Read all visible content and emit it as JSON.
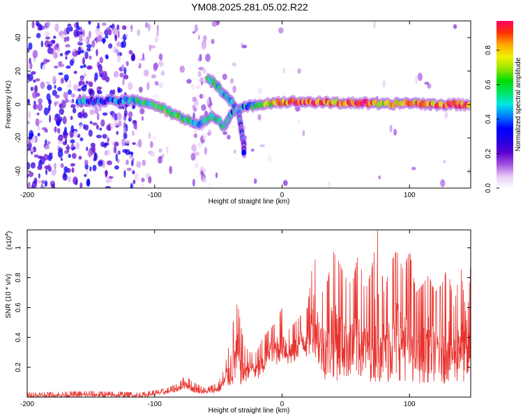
{
  "figure_title": "YM08.2025.281.05.02.R22",
  "chart_data": [
    {
      "type": "heatmap",
      "xlabel": "Height of straight line (km)",
      "ylabel": "Frequency (Hz)",
      "xlim": [
        -200,
        148
      ],
      "ylim": [
        -50,
        50
      ],
      "xticks": [
        -200,
        -100,
        0,
        100
      ],
      "yticks": [
        -40,
        -20,
        0,
        20,
        40
      ],
      "colorbar": {
        "label": "Normalized spectral amplitude",
        "range": [
          0,
          0.97
        ],
        "ticks": [
          0.0,
          0.2,
          0.4,
          0.6,
          0.8
        ],
        "colormap": [
          "#ffffff",
          "#e6c8f5",
          "#a050e0",
          "#5a00d0",
          "#1e00e6",
          "#0000ff",
          "#0078ff",
          "#00e6e6",
          "#00e664",
          "#00dc00",
          "#96e600",
          "#f0f000",
          "#ffaa00",
          "#ff3200",
          "#ff0064"
        ]
      },
      "main_ridge": [
        {
          "x": -160,
          "f": 2,
          "amp": 0.45
        },
        {
          "x": -140,
          "f": 2,
          "amp": 0.3
        },
        {
          "x": -118,
          "f": 2.5,
          "amp": 0.5
        },
        {
          "x": -105,
          "f": 1,
          "amp": 0.55
        },
        {
          "x": -95,
          "f": -2,
          "amp": 0.6
        },
        {
          "x": -85,
          "f": -6,
          "amp": 0.6
        },
        {
          "x": -75,
          "f": -9,
          "amp": 0.55
        },
        {
          "x": -65,
          "f": -12,
          "amp": 0.5
        },
        {
          "x": -55,
          "f": -7,
          "amp": 0.55
        },
        {
          "x": -45,
          "f": -13,
          "amp": 0.5
        },
        {
          "x": -40,
          "f": -5,
          "amp": 0.45
        },
        {
          "x": -30,
          "f": -2,
          "amp": 0.4
        },
        {
          "x": -20,
          "f": 0,
          "amp": 0.5
        },
        {
          "x": -10,
          "f": 1,
          "amp": 0.7
        },
        {
          "x": 0,
          "f": 1.5,
          "amp": 0.85
        },
        {
          "x": 20,
          "f": 1.5,
          "amp": 0.9
        },
        {
          "x": 40,
          "f": 1,
          "amp": 0.8
        },
        {
          "x": 60,
          "f": 1,
          "amp": 0.95
        },
        {
          "x": 80,
          "f": 0,
          "amp": 0.75
        },
        {
          "x": 100,
          "f": 1,
          "amp": 0.8
        },
        {
          "x": 120,
          "f": 0,
          "amp": 0.85
        },
        {
          "x": 140,
          "f": 0,
          "amp": 0.9
        },
        {
          "x": 148,
          "f": 0,
          "amp": 0.85
        }
      ],
      "upper_branch": [
        {
          "x": -58,
          "f": 16,
          "amp": 0.55
        },
        {
          "x": -52,
          "f": 12,
          "amp": 0.55
        },
        {
          "x": -45,
          "f": 6,
          "amp": 0.5
        },
        {
          "x": -38,
          "f": 0,
          "amp": 0.45
        },
        {
          "x": -34,
          "f": -5,
          "amp": 0.4
        },
        {
          "x": -32,
          "f": -15,
          "amp": 0.35
        },
        {
          "x": -30,
          "f": -24,
          "amp": 0.3
        },
        {
          "x": -30,
          "f": -30,
          "amp": 0.25
        }
      ]
    },
    {
      "type": "line",
      "xlabel": "Height of straight line (km)",
      "ylabel": "SNR (10 * v/v)",
      "yexponent_label": "(x10",
      "yexponent_power": "4",
      "yexponent_close": ")",
      "xlim": [
        -200,
        148
      ],
      "ylim": [
        0,
        1.12
      ],
      "xticks": [
        -200,
        -100,
        0,
        100
      ],
      "yticks": [
        0.2,
        0.4,
        0.6,
        0.8,
        1.0
      ],
      "color": "#e8322d",
      "envelope": {
        "x": [
          -200,
          -150,
          -110,
          -90,
          -80,
          -76,
          -70,
          -60,
          -50,
          -45,
          -40,
          -35,
          -30,
          -25,
          -20,
          -15,
          -10,
          -5,
          0,
          5,
          10,
          15,
          20,
          25,
          30,
          35,
          40,
          45,
          50,
          55,
          60,
          65,
          70,
          75,
          80,
          85,
          90,
          95,
          100,
          105,
          110,
          115,
          120,
          125,
          130,
          135,
          140,
          145,
          148
        ],
        "low": [
          0.0,
          0.0,
          0.0,
          0.02,
          0.04,
          0.06,
          0.03,
          0.02,
          0.03,
          0.05,
          0.06,
          0.08,
          0.07,
          0.15,
          0.1,
          0.12,
          0.25,
          0.2,
          0.25,
          0.2,
          0.22,
          0.3,
          0.25,
          0.3,
          0.15,
          0.1,
          0.12,
          0.1,
          0.12,
          0.1,
          0.1,
          0.12,
          0.1,
          0.1,
          0.1,
          0.08,
          0.1,
          0.12,
          0.08,
          0.1,
          0.08,
          0.1,
          0.1,
          0.08,
          0.1,
          0.08,
          0.1,
          0.08,
          0.1
        ],
        "high": [
          0.03,
          0.04,
          0.03,
          0.06,
          0.1,
          0.15,
          0.1,
          0.06,
          0.1,
          0.2,
          0.43,
          0.64,
          0.35,
          0.3,
          0.3,
          0.4,
          0.45,
          0.5,
          0.6,
          0.45,
          0.5,
          0.55,
          0.6,
          0.98,
          0.68,
          0.75,
          0.98,
          0.9,
          0.8,
          0.75,
          0.98,
          0.7,
          0.85,
          1.12,
          0.7,
          0.9,
          0.98,
          0.85,
          0.98,
          0.7,
          0.75,
          0.82,
          0.7,
          0.75,
          0.88,
          0.6,
          0.9,
          0.5,
          0.9
        ]
      }
    }
  ]
}
